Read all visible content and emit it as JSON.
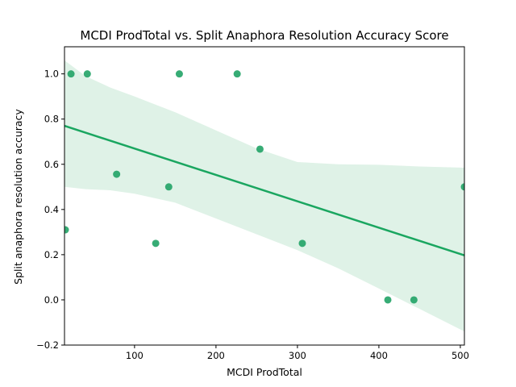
{
  "chart_data": {
    "type": "scatter",
    "title": "MCDI ProdTotal vs. Split Anaphora Resolution Accuracy Score",
    "xlabel": "MCDI ProdTotal",
    "ylabel": "Split anaphora resolution accuracy",
    "xlim": [
      14,
      505
    ],
    "ylim": [
      -0.2,
      1.12
    ],
    "xticks": [
      100,
      200,
      300,
      400,
      500
    ],
    "yticks": [
      -0.2,
      0.0,
      0.2,
      0.4,
      0.6,
      0.8,
      1.0
    ],
    "xtick_labels": [
      "100",
      "200",
      "300",
      "400",
      "500"
    ],
    "ytick_labels": [
      "−0.2",
      "0.0",
      "0.2",
      "0.4",
      "0.6",
      "0.8",
      "1.0"
    ],
    "grid": false,
    "colors": {
      "points": "#21a366",
      "line": "#1aa660",
      "band": "#dff2e7"
    },
    "points": [
      {
        "x": 15,
        "y": 0.31
      },
      {
        "x": 22,
        "y": 1.0
      },
      {
        "x": 42,
        "y": 1.0
      },
      {
        "x": 78,
        "y": 0.556
      },
      {
        "x": 126,
        "y": 0.25
      },
      {
        "x": 142,
        "y": 0.5
      },
      {
        "x": 155,
        "y": 1.0
      },
      {
        "x": 226,
        "y": 1.0
      },
      {
        "x": 254,
        "y": 0.667
      },
      {
        "x": 306,
        "y": 0.25
      },
      {
        "x": 411,
        "y": 0.0
      },
      {
        "x": 443,
        "y": 0.0
      },
      {
        "x": 505,
        "y": 0.5
      }
    ],
    "regression_line": [
      {
        "x": 14,
        "y": 0.77
      },
      {
        "x": 505,
        "y": 0.197
      }
    ],
    "confidence_band": {
      "x": [
        14,
        40,
        70,
        100,
        150,
        200,
        250,
        300,
        350,
        400,
        450,
        505
      ],
      "upper": [
        1.06,
        0.99,
        0.94,
        0.9,
        0.83,
        0.75,
        0.67,
        0.61,
        0.6,
        0.598,
        0.59,
        0.585
      ],
      "lower": [
        0.5,
        0.49,
        0.485,
        0.47,
        0.43,
        0.36,
        0.29,
        0.22,
        0.14,
        0.05,
        -0.04,
        -0.14
      ]
    }
  }
}
